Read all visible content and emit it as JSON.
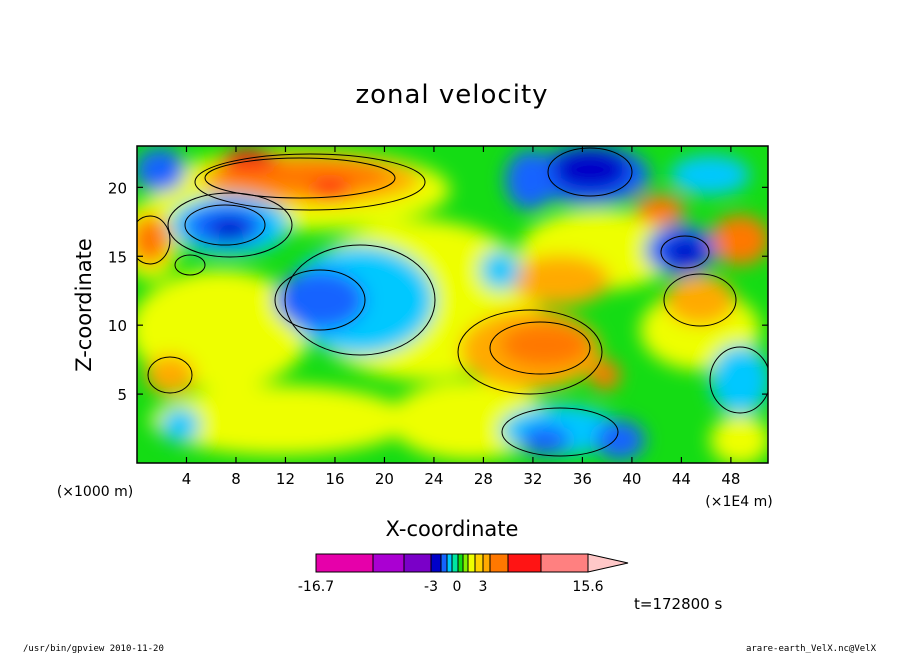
{
  "chart_data": {
    "type": "heatmap",
    "title": "zonal velocity",
    "xlabel": "X-coordinate",
    "ylabel": "Z-coordinate",
    "x_unit": "(×1E4 m)",
    "y_unit": "(×1000 m)",
    "xlim": [
      0,
      51
    ],
    "ylim": [
      0,
      23
    ],
    "x_ticks": [
      4,
      8,
      12,
      16,
      20,
      24,
      28,
      32,
      36,
      40,
      44,
      48
    ],
    "y_ticks": [
      5,
      10,
      15,
      20
    ],
    "colorbar": {
      "colors": [
        "#e600aa",
        "#aa00d2",
        "#7a00c8",
        "#0000c8",
        "#1464ff",
        "#00c8ff",
        "#00e6a0",
        "#14dc14",
        "#82f000",
        "#eeff00",
        "#ffd200",
        "#ffaa00",
        "#ff7800",
        "#ff1414",
        "#ff8080",
        "#ffc8c8"
      ],
      "labels": [
        "-16.7",
        "-3",
        "0",
        "3",
        "15.6"
      ],
      "label_values": [
        -16.7,
        -3,
        0,
        3,
        15.6
      ]
    },
    "time_label": "t=172800 s",
    "grid": false,
    "legend": "bottom colorbar"
  },
  "footer": {
    "left": "/usr/bin/gpview  2010-11-20",
    "right": "arare-earth_VelX.nc@VelX"
  }
}
